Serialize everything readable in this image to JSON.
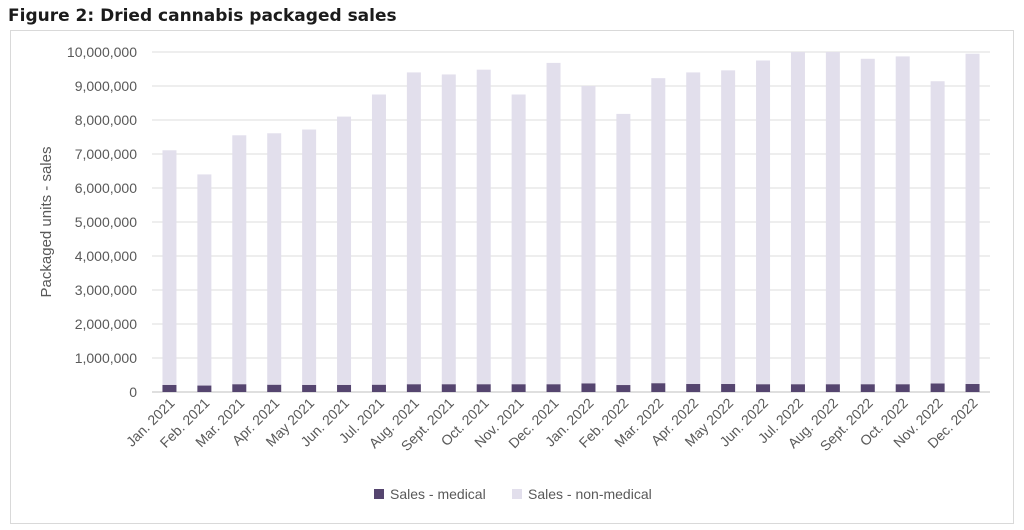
{
  "figure_title": "Figure 2: Dried cannabis packaged sales",
  "chart_data": {
    "type": "bar",
    "stacked": true,
    "ylabel": "Packaged units - sales",
    "xlabel": "",
    "ylim": [
      0,
      10000000
    ],
    "yticks": [
      "0",
      "1,000,000",
      "2,000,000",
      "3,000,000",
      "4,000,000",
      "5,000,000",
      "6,000,000",
      "7,000,000",
      "8,000,000",
      "9,000,000",
      "10,000,000"
    ],
    "grid": true,
    "legend_position": "bottom",
    "categories": [
      "Jan. 2021",
      "Feb. 2021",
      "Mar. 2021",
      "Apr. 2021",
      "May 2021",
      "Jun. 2021",
      "Jul. 2021",
      "Aug. 2021",
      "Sept. 2021",
      "Oct. 2021",
      "Nov. 2021",
      "Dec. 2021",
      "Jan. 2022",
      "Feb. 2022",
      "Mar. 2022",
      "Apr. 2022",
      "May 2022",
      "Jun. 2022",
      "Jul. 2022",
      "Aug. 2022",
      "Sept. 2022",
      "Oct. 2022",
      "Nov. 2022",
      "Dec. 2022"
    ],
    "series": [
      {
        "name": "Sales - medical",
        "color": "#55456f",
        "values": [
          210000,
          190000,
          230000,
          215000,
          210000,
          210000,
          215000,
          230000,
          230000,
          230000,
          230000,
          230000,
          255000,
          205000,
          260000,
          235000,
          235000,
          230000,
          230000,
          230000,
          230000,
          230000,
          250000,
          235000
        ]
      },
      {
        "name": "Sales - non-medical",
        "color": "#e2dfec",
        "values": [
          6900000,
          6210000,
          7320000,
          7395000,
          7510000,
          7890000,
          8535000,
          9170000,
          9110000,
          9250000,
          8520000,
          9450000,
          8745000,
          7975000,
          8970000,
          9165000,
          9225000,
          9520000,
          9770000,
          9770000,
          9570000,
          9640000,
          8890000,
          9715000
        ]
      }
    ]
  }
}
